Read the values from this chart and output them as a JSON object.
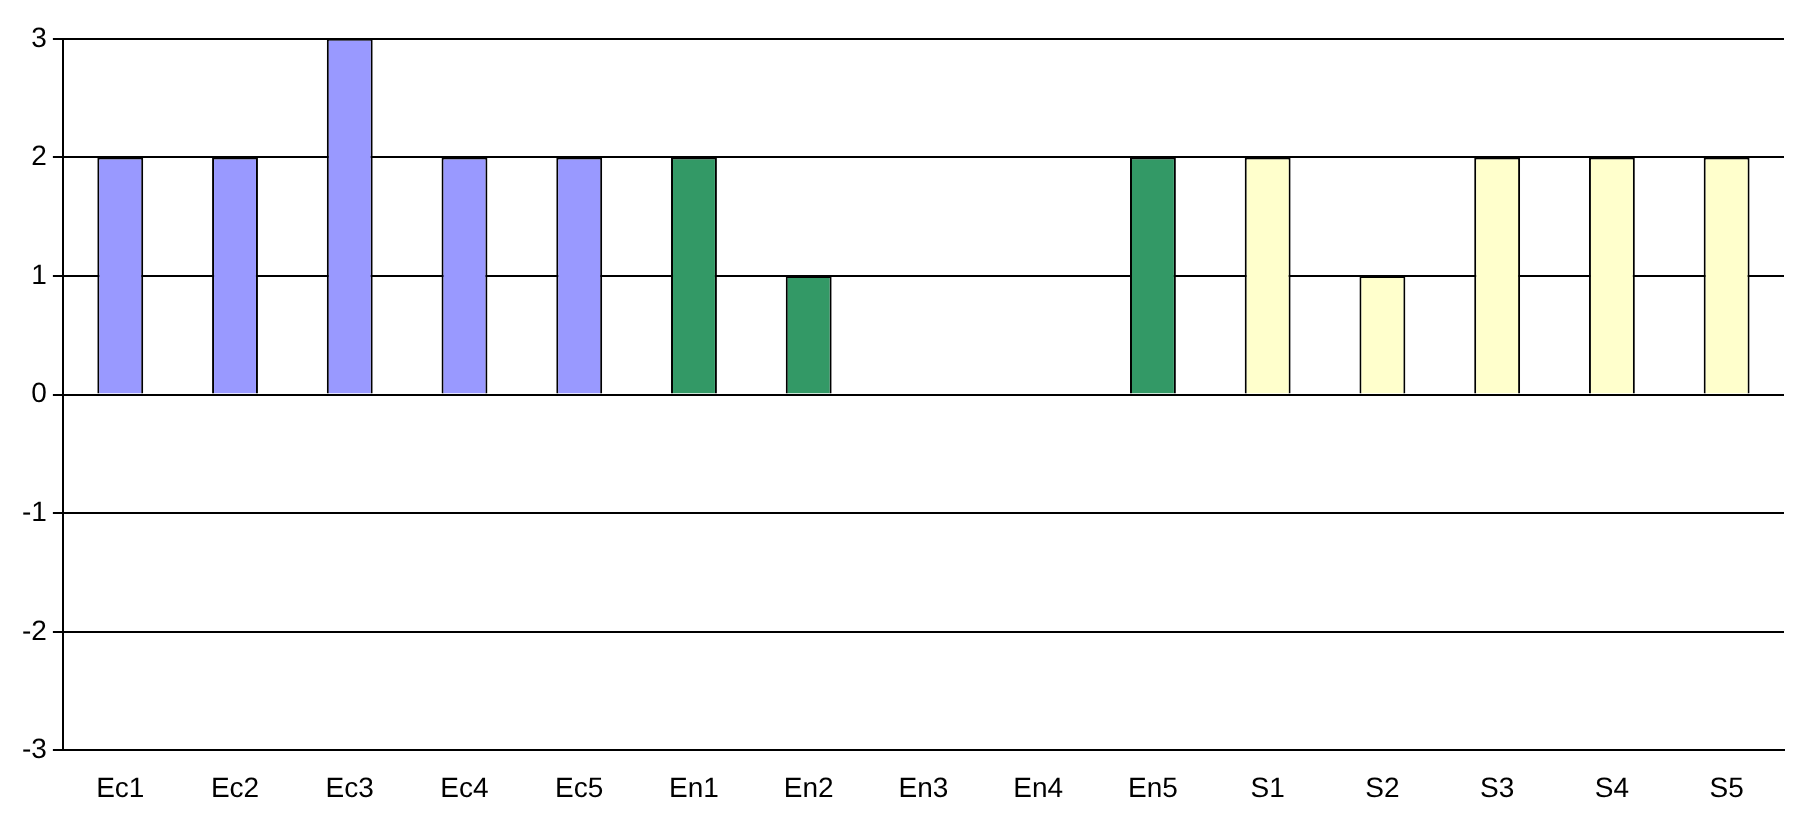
{
  "chart_data": {
    "type": "bar",
    "categories": [
      "Ec1",
      "Ec2",
      "Ec3",
      "Ec4",
      "Ec5",
      "En1",
      "En2",
      "En3",
      "En4",
      "En5",
      "S1",
      "S2",
      "S3",
      "S4",
      "S5"
    ],
    "values": [
      2,
      2,
      3,
      2,
      2,
      2,
      1,
      0,
      0,
      2,
      2,
      1,
      2,
      2,
      2
    ],
    "colors": [
      "#9999ff",
      "#9999ff",
      "#9999ff",
      "#9999ff",
      "#9999ff",
      "#339966",
      "#339966",
      "#339966",
      "#339966",
      "#339966",
      "#ffffcc",
      "#ffffcc",
      "#ffffcc",
      "#ffffcc",
      "#ffffcc"
    ],
    "ylim": [
      -3,
      3
    ],
    "yticks": [
      -3,
      -2,
      -1,
      0,
      1,
      2,
      3
    ],
    "grid": "y",
    "legend": false
  }
}
